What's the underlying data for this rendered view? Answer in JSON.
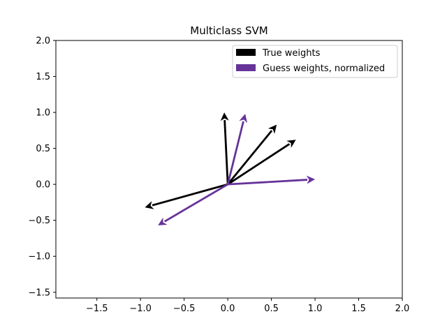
{
  "chart_data": {
    "type": "quiver",
    "title": "Multiclass SVM",
    "xlabel": "",
    "ylabel": "",
    "xlim": [
      -1.97,
      2.0
    ],
    "ylim": [
      -1.58,
      2.0
    ],
    "xticks": [
      -1.5,
      -1.0,
      -0.5,
      0.0,
      0.5,
      1.0,
      1.5,
      2.0
    ],
    "xtick_labels": [
      "−1.5",
      "−1.0",
      "−0.5",
      "0.0",
      "0.5",
      "1.0",
      "1.5",
      "2.0"
    ],
    "yticks": [
      -1.5,
      -1.0,
      -0.5,
      0.0,
      0.5,
      1.0,
      1.5,
      2.0
    ],
    "ytick_labels": [
      "−1.5",
      "−1.0",
      "−0.5",
      "0.0",
      "0.5",
      "1.0",
      "1.5",
      "2.0"
    ],
    "grid": false,
    "legend_position": "top-right",
    "series": [
      {
        "name": "True weights",
        "color": "#000000",
        "origin": [
          0.0,
          0.0
        ],
        "vectors": [
          [
            -0.04,
            1.0
          ],
          [
            0.56,
            0.83
          ],
          [
            0.78,
            0.62
          ],
          [
            -0.95,
            -0.32
          ]
        ]
      },
      {
        "name": "Guess weights, normalized",
        "color": "#663399",
        "origin": [
          0.0,
          0.0
        ],
        "vectors": [
          [
            0.2,
            0.98
          ],
          [
            1.0,
            0.07
          ],
          [
            -0.8,
            -0.57
          ]
        ]
      }
    ]
  }
}
